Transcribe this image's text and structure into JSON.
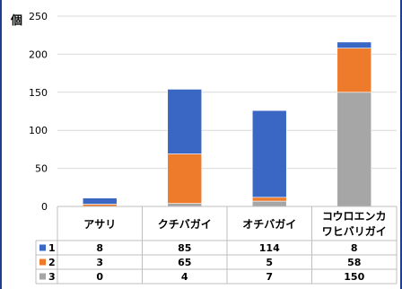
{
  "chart_data": {
    "type": "bar",
    "stacked": true,
    "ylabel": "個",
    "ylim": [
      0,
      250
    ],
    "yticks": [
      0,
      50,
      100,
      150,
      200,
      250
    ],
    "grid": true,
    "categories": [
      [
        "アサリ"
      ],
      [
        "クチバガイ"
      ],
      [
        "オチバガイ"
      ],
      [
        "コウロエンカ",
        "ワヒバリガイ"
      ]
    ],
    "series": [
      {
        "name": "1",
        "color": "#3a67c4",
        "values": [
          8,
          85,
          114,
          8
        ]
      },
      {
        "name": "2",
        "color": "#ee7b2c",
        "values": [
          3,
          65,
          5,
          58
        ]
      },
      {
        "name": "3",
        "color": "#a6a6a6",
        "values": [
          0,
          4,
          7,
          150
        ]
      }
    ],
    "legend": "data-table-left",
    "table_values": [
      [
        "8",
        "85",
        "114",
        "8"
      ],
      [
        "3",
        "65",
        "5",
        "58"
      ],
      [
        "0",
        "4",
        "7",
        "150"
      ]
    ]
  }
}
